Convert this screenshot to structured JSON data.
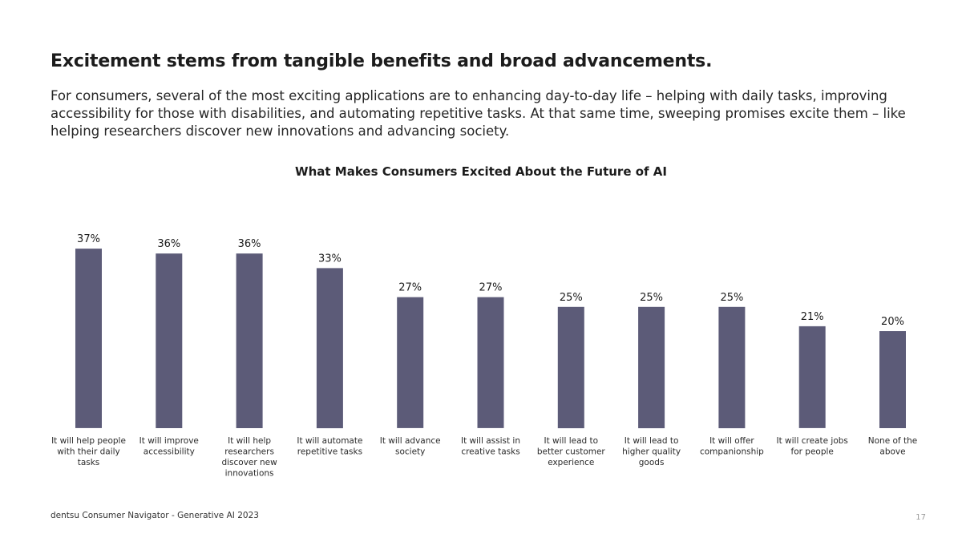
{
  "header": {
    "headline": "Excitement stems from tangible benefits and broad advancements.",
    "subtext": "For consumers, several of the most exciting applications are to enhancing day-to-day life – helping with daily tasks, improving accessibility for those with disabilities, and automating repetitive tasks. At that same time, sweeping promises excite them – like helping researchers discover new innovations and advancing society."
  },
  "chart_data": {
    "type": "bar",
    "title": "What Makes Consumers Excited About the Future of AI",
    "categories": [
      "It will help people with their daily tasks",
      "It will improve accessibility",
      "It will help researchers discover new innovations",
      "It will automate repetitive tasks",
      "It will advance society",
      "It will assist in creative tasks",
      "It will lead to better customer experience",
      "It will lead to higher quality goods",
      "It will offer companionship",
      "It will create jobs for people",
      "None of the above"
    ],
    "category_lines": [
      [
        "It will help people",
        "with their daily",
        "tasks"
      ],
      [
        "It will improve",
        "accessibility"
      ],
      [
        "It will help",
        "researchers",
        "discover new",
        "innovations"
      ],
      [
        "It will automate",
        "repetitive tasks"
      ],
      [
        "It will advance",
        "society"
      ],
      [
        "It will assist in",
        "creative tasks"
      ],
      [
        "It will lead to",
        "better customer",
        "experience"
      ],
      [
        "It will lead to",
        "higher quality",
        "goods"
      ],
      [
        "It will offer",
        "companionship"
      ],
      [
        "It will create jobs",
        "for people"
      ],
      [
        "None of the",
        "above"
      ]
    ],
    "values": [
      37,
      36,
      36,
      33,
      27,
      27,
      25,
      25,
      25,
      21,
      20
    ],
    "value_labels": [
      "37%",
      "36%",
      "36%",
      "33%",
      "27%",
      "27%",
      "25%",
      "25%",
      "25%",
      "21%",
      "20%"
    ],
    "bar_color": "#5c5b78",
    "grid": false,
    "legend": "none"
  },
  "footer": {
    "source": "dentsu Consumer Navigator - Generative AI 2023",
    "page_number": "17"
  }
}
